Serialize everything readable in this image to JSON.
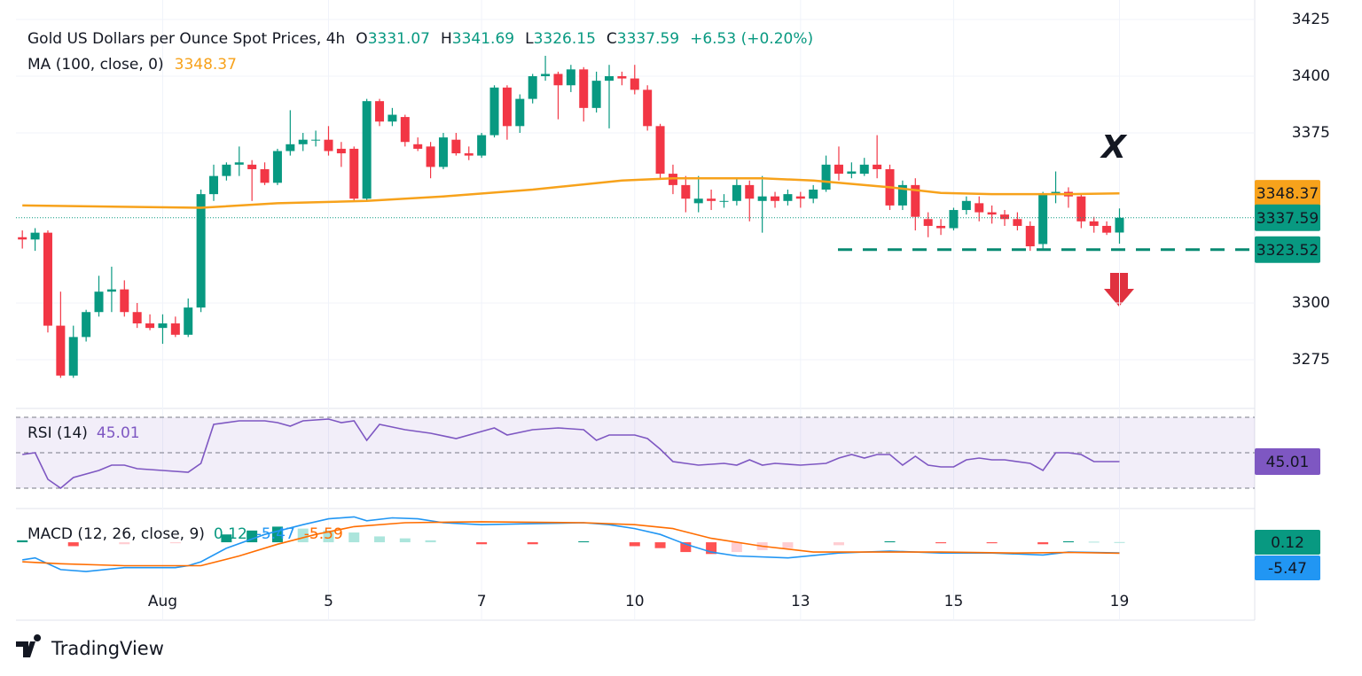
{
  "chart_data": [
    {
      "type": "candlestick",
      "header": {
        "symbol": "Gold US Dollars per Ounce Spot Prices, 4h",
        "o_label": "O",
        "open": 3331.07,
        "h_label": "H",
        "high": 3341.69,
        "l_label": "L",
        "low": 3326.15,
        "c_label": "C",
        "close": 3337.59,
        "change": "+6.53 (+0.20%)"
      },
      "up_color": "#089981",
      "down_color": "#f23645",
      "candles": {
        "open": [
          3329,
          3328,
          3331,
          3290,
          3268,
          3285,
          3296,
          3305,
          3306,
          3296,
          3291,
          3289,
          3291,
          3286,
          3298,
          3348,
          3356,
          3361,
          3361,
          3359,
          3353,
          3367,
          3370,
          3372,
          3372,
          3368,
          3368,
          3346,
          3389,
          3380,
          3382,
          3370,
          3369,
          3360,
          3372,
          3366,
          3365,
          3374,
          3395,
          3378,
          3390,
          3400,
          3401,
          3396,
          3403,
          3386,
          3398,
          3400,
          3399,
          3394,
          3378,
          3357,
          3352,
          3344,
          3346,
          3345,
          3345,
          3352,
          3345,
          3347,
          3345,
          3347,
          3346,
          3350,
          3361,
          3357,
          3357,
          3361,
          3359,
          3343,
          3352,
          3337,
          3334,
          3333,
          3341,
          3344,
          3340,
          3339,
          3337,
          3334,
          3326,
          3348,
          3349,
          3347,
          3336,
          3334,
          3331.07
        ],
        "high": [
          3332,
          3333,
          3332,
          3305,
          3290,
          3297,
          3312,
          3316,
          3310,
          3300,
          3295,
          3295,
          3294,
          3302,
          3350,
          3361,
          3362,
          3369,
          3363,
          3362,
          3368,
          3385,
          3375,
          3376,
          3378,
          3371,
          3369,
          3390,
          3390,
          3386,
          3383,
          3373,
          3371,
          3375,
          3375,
          3369,
          3375,
          3396,
          3396,
          3392,
          3401,
          3409,
          3402,
          3405,
          3404,
          3402,
          3405,
          3402,
          3405,
          3396,
          3379,
          3361,
          3356,
          3356,
          3350,
          3348,
          3355,
          3354,
          3356,
          3349,
          3350,
          3349,
          3352,
          3365,
          3369,
          3362,
          3364,
          3374,
          3361,
          3354,
          3355,
          3340,
          3337,
          3342,
          3347,
          3347,
          3343,
          3341,
          3340,
          3336,
          3349,
          3358,
          3351,
          3348,
          3338,
          3336,
          3341.69
        ],
        "low": [
          3324,
          3323,
          3287,
          3267,
          3267,
          3283,
          3294,
          3296,
          3294,
          3289,
          3288,
          3282,
          3285,
          3285,
          3296,
          3345,
          3354,
          3356,
          3345,
          3352,
          3352,
          3365,
          3367,
          3369,
          3365,
          3360,
          3345,
          3345,
          3378,
          3378,
          3369,
          3367,
          3355,
          3359,
          3365,
          3363,
          3364,
          3373,
          3372,
          3375,
          3388,
          3398,
          3381,
          3393,
          3380,
          3384,
          3377,
          3396,
          3392,
          3376,
          3355,
          3348,
          3340,
          3340,
          3341,
          3342,
          3343,
          3336,
          3331,
          3342,
          3343,
          3342,
          3344,
          3349,
          3354,
          3355,
          3356,
          3355,
          3341,
          3341,
          3332,
          3329,
          3330,
          3332,
          3339,
          3336,
          3335,
          3334,
          3332,
          3323,
          3324,
          3344,
          3342,
          3333,
          3331,
          3330,
          3326.15
        ],
        "close": [
          3328,
          3331,
          3290,
          3268,
          3285,
          3296,
          3305,
          3306,
          3296,
          3291,
          3289,
          3291,
          3286,
          3298,
          3348,
          3356,
          3361,
          3362,
          3359,
          3353,
          3367,
          3370,
          3372,
          3372,
          3367,
          3366,
          3346,
          3389,
          3380,
          3383,
          3371,
          3368,
          3360,
          3373,
          3366,
          3365,
          3374,
          3395,
          3378,
          3390,
          3400,
          3401,
          3396,
          3403,
          3386,
          3398,
          3400,
          3399,
          3394,
          3378,
          3357,
          3352,
          3346,
          3346,
          3345,
          3345,
          3352,
          3346,
          3347,
          3345,
          3348,
          3346,
          3350,
          3361,
          3357,
          3358,
          3361,
          3359,
          3343,
          3352,
          3338,
          3334,
          3333,
          3341,
          3345,
          3340,
          3339,
          3337,
          3334,
          3325,
          3348,
          3349,
          3347,
          3336,
          3334,
          3331,
          3337.59
        ]
      },
      "ma": {
        "name": "MA (100, close, 0)",
        "color": "#f7a21b",
        "last": 3348.37,
        "x": [
          0,
          14,
          20,
          27,
          33,
          40,
          47,
          51,
          58,
          62,
          68,
          72,
          76,
          82,
          86
        ],
        "values": [
          3343,
          3342,
          3344,
          3345,
          3347,
          3350,
          3354,
          3355,
          3355,
          3354,
          3351,
          3348.5,
          3348,
          3348,
          3348.37
        ]
      },
      "support": 3323.52,
      "annotation": "X",
      "ylim": [
        3253.9,
        3433.6
      ],
      "yticks": [
        3275,
        3300,
        3375,
        3400,
        3425
      ],
      "grid": true,
      "xlim": [
        -0.5,
        96.6
      ],
      "xticks": [
        {
          "value": 11,
          "label": "Aug"
        },
        {
          "value": 24,
          "label": "5"
        },
        {
          "value": 36,
          "label": "7"
        },
        {
          "value": 48,
          "label": "10"
        },
        {
          "value": 61,
          "label": "13"
        },
        {
          "value": 73,
          "label": "15"
        },
        {
          "value": 86,
          "label": "19"
        }
      ]
    },
    {
      "type": "line",
      "title": "RSI (14)",
      "color": "#7e57c2",
      "last": 45.01,
      "x": [
        0,
        1,
        2,
        3,
        4,
        6,
        7,
        8,
        9,
        11,
        13,
        14,
        15,
        17,
        19,
        20,
        21,
        22,
        24,
        25,
        26,
        27,
        28,
        30,
        32,
        34,
        36,
        37,
        38,
        40,
        42,
        44,
        45,
        46,
        48,
        49,
        50,
        51,
        52,
        53,
        55,
        56,
        57,
        58,
        59,
        61,
        63,
        64,
        65,
        66,
        67,
        68,
        69,
        70,
        71,
        72,
        73,
        74,
        75,
        76,
        77,
        79,
        80,
        81,
        82,
        83,
        84,
        85,
        86
      ],
      "values": [
        49,
        50,
        35,
        30,
        36,
        40,
        43,
        43,
        41,
        40,
        39,
        44,
        66,
        68,
        68,
        67,
        65,
        68,
        69,
        67,
        68,
        57,
        66,
        63,
        61,
        58,
        62,
        64,
        60,
        63,
        64,
        63,
        57,
        60,
        60,
        58,
        52,
        45,
        44,
        43,
        44,
        43,
        46,
        43,
        44,
        43,
        44,
        47,
        49,
        47,
        49,
        49,
        43,
        48,
        43,
        42,
        42,
        46,
        47,
        46,
        46,
        44,
        40,
        50,
        50,
        49,
        45,
        45,
        45.01
      ],
      "ylim": [
        19,
        74.5
      ],
      "yticks": [
        30,
        50,
        70
      ]
    },
    {
      "type": "macd",
      "title": "MACD (12, 26, close, 9)",
      "hist_last": 0.12,
      "macd_last": -5.47,
      "signal_last": -5.59,
      "hist": {
        "x": [
          0,
          4,
          8,
          12,
          16,
          18,
          20,
          22,
          24,
          26,
          28,
          30,
          32,
          36,
          40,
          44,
          48,
          50,
          52,
          54,
          56,
          58,
          60,
          64,
          68,
          72,
          76,
          80,
          82,
          84,
          86
        ],
        "values": [
          1,
          -2,
          -1,
          -0.5,
          4,
          6,
          8,
          7,
          6,
          5,
          3,
          2,
          1,
          -1,
          -1,
          0.5,
          -2,
          -3,
          -5,
          -6,
          -5,
          -4,
          -3,
          -1.5,
          0.5,
          -0.5,
          -0.5,
          -1,
          0.5,
          0.3,
          0.12
        ]
      },
      "series": [
        {
          "name": "MACD",
          "color": "#2196f3",
          "x": [
            0,
            1,
            3,
            5,
            8,
            12,
            13,
            14,
            16,
            19,
            22,
            24,
            26,
            27,
            29,
            31,
            33,
            36,
            40,
            44,
            46,
            48,
            50,
            52,
            54,
            56,
            60,
            64,
            68,
            72,
            76,
            80,
            82,
            86
          ],
          "values": [
            -9,
            -8,
            -14,
            -15,
            -13,
            -13,
            -12,
            -10,
            -3,
            4,
            9,
            12,
            13,
            11,
            12.5,
            12,
            10,
            9,
            9.5,
            10,
            9,
            7,
            4,
            -1,
            -5,
            -7,
            -8,
            -5.5,
            -4.5,
            -5.5,
            -5.5,
            -6.5,
            -5,
            -5.47
          ]
        },
        {
          "name": "Signal",
          "color": "#ff6d00",
          "x": [
            0,
            3,
            8,
            14,
            17,
            20,
            23,
            26,
            30,
            36,
            44,
            48,
            51,
            54,
            58,
            62,
            66,
            72,
            78,
            82,
            86
          ],
          "values": [
            -10,
            -11,
            -12,
            -12,
            -7,
            -1,
            4,
            8,
            10,
            10.5,
            10,
            9,
            7,
            2,
            -2,
            -5,
            -5,
            -5,
            -5.5,
            -5.2,
            -5.59
          ]
        }
      ],
      "ylim": [
        -24,
        16.8
      ]
    }
  ],
  "footer": "TradingView"
}
